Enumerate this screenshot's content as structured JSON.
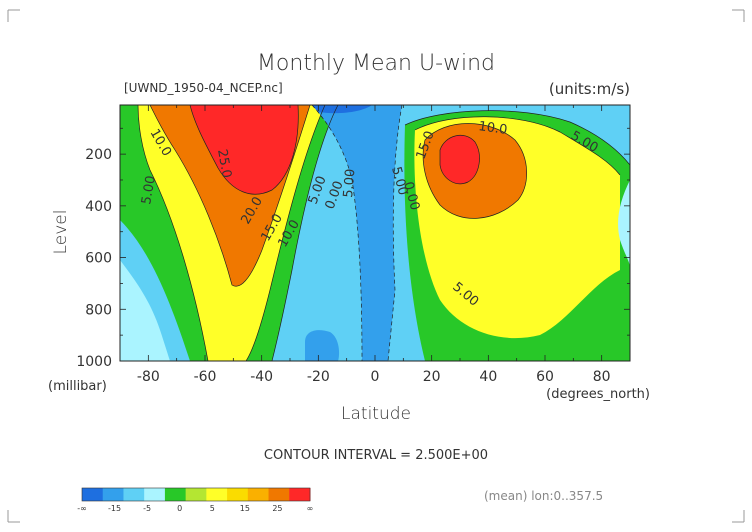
{
  "chart_data": {
    "type": "heatmap",
    "title": "Monthly Mean U-wind",
    "dataset_label": "[UWND_1950-04_NCEP.nc]",
    "units_label": "(units:m/s)",
    "ylabel": "Level",
    "ylabel_units": "(millibar)",
    "xlabel": "Latitude",
    "xlabel_units": "(degrees_north)",
    "xlim": [
      -90,
      90
    ],
    "ylim": [
      1000,
      10
    ],
    "x_ticks": [
      "-80",
      "-60",
      "-40",
      "-20",
      "0",
      "20",
      "40",
      "60",
      "80"
    ],
    "y_ticks": [
      "200",
      "400",
      "600",
      "800",
      "1000"
    ],
    "contour_interval": "CONTOUR INTERVAL = 2.500E+00",
    "footnote": "(mean) lon:0..357.5",
    "contour_labels": [
      "10.0",
      "25.0",
      "5.00",
      "20.0",
      "15.0",
      "10.0",
      "5.00",
      "0.00",
      "5.00",
      "5.00",
      "0.00",
      "15.0",
      "10.0",
      "5.00",
      "5.00"
    ],
    "colorbar": {
      "labels": [
        "-∞",
        "-15",
        "-5",
        "0",
        "5",
        "15",
        "25",
        "∞"
      ],
      "colors": [
        "#1e6fe0",
        "#33a0ec",
        "#5fd0f5",
        "#aaf4ff",
        "#28c828",
        "#b4e632",
        "#ffff28",
        "#fadc00",
        "#fab000",
        "#f07800",
        "#ff2828"
      ]
    },
    "colors": {
      "strong_negative": "#1e6fe0",
      "negative": "#33a0ec",
      "weak_negative": "#5fd0f5",
      "near_zero": "#aaf4ff",
      "weak_positive": "#28c828",
      "positive": "#ffff28",
      "strong_positive": "#f07800",
      "jet_core": "#ff2828"
    }
  }
}
